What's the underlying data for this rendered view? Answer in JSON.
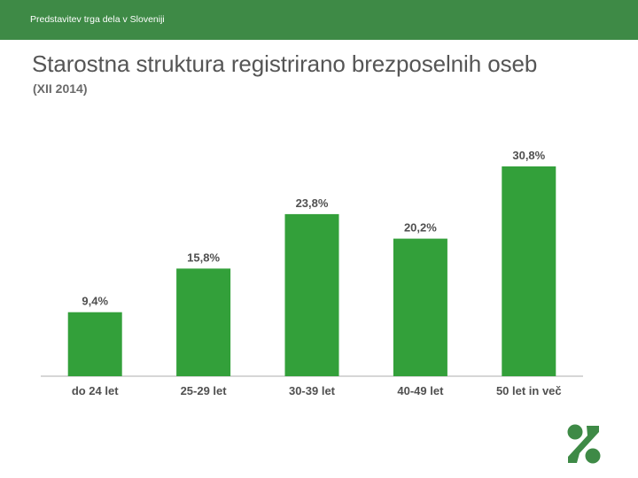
{
  "header": {
    "text": "Predstavitev trga dela v Sloveniji"
  },
  "slide": {
    "title": "Starostna struktura registrirano brezposelnih oseb",
    "subtitle": "(XII 2014)"
  },
  "colors": {
    "header_bg": "#3e8a46",
    "bar": "#33a03a",
    "axis": "#c8c8c8",
    "logo": "#3e8a46"
  },
  "logo": {
    "icon": "company-logo"
  },
  "chart_data": {
    "type": "bar",
    "categories": [
      "do 24 let",
      "25-29 let",
      "30-39 let",
      "40-49 let",
      "50 let in več"
    ],
    "values": [
      9.4,
      15.8,
      23.8,
      20.2,
      30.8
    ],
    "value_labels": [
      "9,4%",
      "15,8%",
      "23,8%",
      "20,2%",
      "30,8%"
    ],
    "title": "",
    "xlabel": "",
    "ylabel": "",
    "ylim": [
      0,
      30.8
    ],
    "grid": false,
    "legend": "none"
  }
}
